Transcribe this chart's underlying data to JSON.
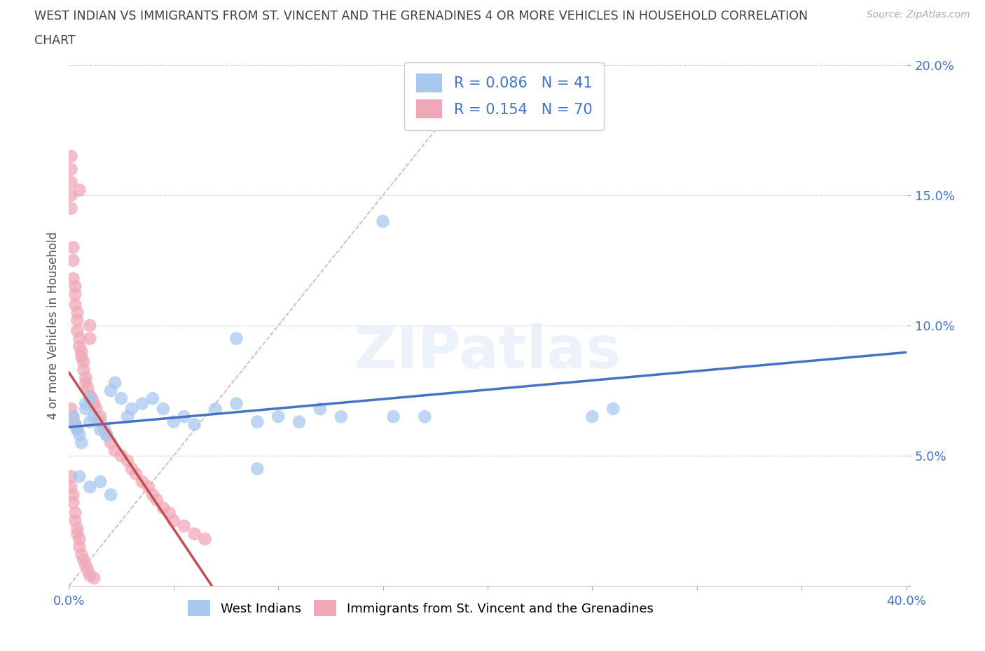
{
  "title_line1": "WEST INDIAN VS IMMIGRANTS FROM ST. VINCENT AND THE GRENADINES 4 OR MORE VEHICLES IN HOUSEHOLD CORRELATION",
  "title_line2": "CHART",
  "source": "Source: ZipAtlas.com",
  "ylabel": "4 or more Vehicles in Household",
  "xlim": [
    0.0,
    0.4
  ],
  "ylim": [
    0.0,
    0.2
  ],
  "xticks": [
    0.0,
    0.05,
    0.1,
    0.15,
    0.2,
    0.25,
    0.3,
    0.35,
    0.4
  ],
  "yticks": [
    0.0,
    0.05,
    0.1,
    0.15,
    0.2
  ],
  "legend_labels": [
    "West Indians",
    "Immigrants from St. Vincent and the Grenadines"
  ],
  "R_blue": 0.086,
  "N_blue": 41,
  "R_pink": 0.154,
  "N_pink": 70,
  "color_blue": "#a8c8f0",
  "color_pink": "#f0a8b8",
  "line_blue": "#4472c4",
  "line_pink": "#c0504d",
  "diagonal_color": "#d4aaaa",
  "title_color": "#404040",
  "axis_label_color": "#4472c4",
  "watermark_text": "ZIPatlas",
  "blue_x": [
    0.002,
    0.003,
    0.004,
    0.005,
    0.006,
    0.008,
    0.008,
    0.01,
    0.01,
    0.012,
    0.015,
    0.018,
    0.02,
    0.022,
    0.025,
    0.028,
    0.03,
    0.035,
    0.04,
    0.045,
    0.05,
    0.055,
    0.06,
    0.07,
    0.08,
    0.09,
    0.1,
    0.11,
    0.12,
    0.13,
    0.15,
    0.155,
    0.005,
    0.01,
    0.015,
    0.02,
    0.25,
    0.26,
    0.08,
    0.17,
    0.09
  ],
  "blue_y": [
    0.065,
    0.062,
    0.06,
    0.058,
    0.055,
    0.068,
    0.07,
    0.072,
    0.063,
    0.065,
    0.06,
    0.058,
    0.075,
    0.078,
    0.072,
    0.065,
    0.068,
    0.07,
    0.072,
    0.068,
    0.063,
    0.065,
    0.062,
    0.068,
    0.07,
    0.063,
    0.065,
    0.063,
    0.068,
    0.065,
    0.14,
    0.065,
    0.042,
    0.038,
    0.04,
    0.035,
    0.065,
    0.068,
    0.095,
    0.065,
    0.045
  ],
  "pink_x": [
    0.001,
    0.001,
    0.001,
    0.001,
    0.001,
    0.002,
    0.002,
    0.002,
    0.003,
    0.003,
    0.003,
    0.004,
    0.004,
    0.004,
    0.005,
    0.005,
    0.005,
    0.006,
    0.006,
    0.007,
    0.007,
    0.008,
    0.008,
    0.009,
    0.01,
    0.01,
    0.01,
    0.011,
    0.012,
    0.013,
    0.015,
    0.015,
    0.017,
    0.018,
    0.02,
    0.022,
    0.025,
    0.028,
    0.03,
    0.032,
    0.035,
    0.038,
    0.04,
    0.042,
    0.045,
    0.048,
    0.05,
    0.055,
    0.06,
    0.065,
    0.001,
    0.001,
    0.002,
    0.002,
    0.003,
    0.003,
    0.004,
    0.004,
    0.005,
    0.005,
    0.006,
    0.007,
    0.008,
    0.009,
    0.01,
    0.012,
    0.001,
    0.002,
    0.003,
    0.004
  ],
  "pink_y": [
    0.155,
    0.16,
    0.15,
    0.145,
    0.165,
    0.13,
    0.125,
    0.118,
    0.115,
    0.112,
    0.108,
    0.105,
    0.102,
    0.098,
    0.152,
    0.095,
    0.092,
    0.09,
    0.088,
    0.086,
    0.083,
    0.08,
    0.078,
    0.076,
    0.1,
    0.095,
    0.073,
    0.072,
    0.07,
    0.068,
    0.065,
    0.063,
    0.06,
    0.058,
    0.055,
    0.052,
    0.05,
    0.048,
    0.045,
    0.043,
    0.04,
    0.038,
    0.035,
    0.033,
    0.03,
    0.028,
    0.025,
    0.023,
    0.02,
    0.018,
    0.042,
    0.038,
    0.035,
    0.032,
    0.028,
    0.025,
    0.022,
    0.02,
    0.018,
    0.015,
    0.012,
    0.01,
    0.008,
    0.006,
    0.004,
    0.003,
    0.068,
    0.065,
    0.062,
    0.06
  ]
}
